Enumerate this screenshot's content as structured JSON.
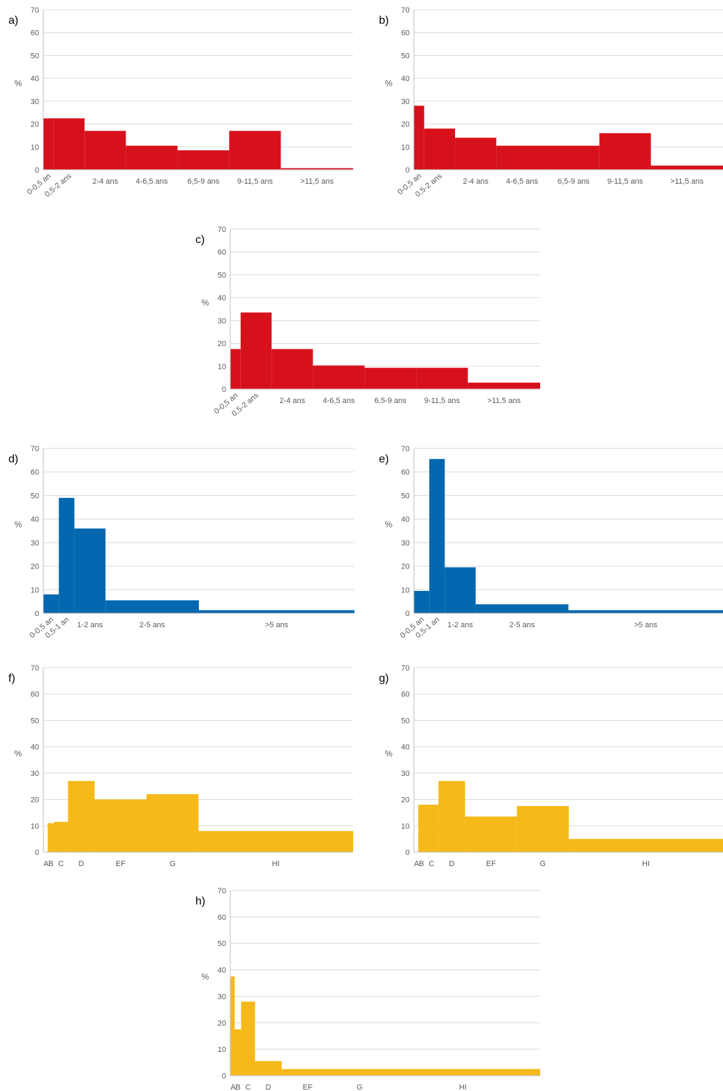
{
  "chart_data": [
    {
      "panel": "a)",
      "type": "bar",
      "ylabel": "%",
      "ylim": [
        0,
        70
      ],
      "yticks": [
        "0",
        "10",
        "20",
        "30",
        "40",
        "50",
        "60",
        "70"
      ],
      "color": "#d7111c",
      "bins": [
        {
          "label": "0-0,5 an",
          "start": 0,
          "end": 0.5,
          "value": 22.5,
          "rotated": true
        },
        {
          "label": "0,5-2 ans",
          "start": 0.5,
          "end": 2,
          "value": 22.5,
          "rotated": true
        },
        {
          "label": "2-4 ans",
          "start": 2,
          "end": 4,
          "value": 17
        },
        {
          "label": "4-6,5 ans",
          "start": 4,
          "end": 6.5,
          "value": 10.5
        },
        {
          "label": "6,5-9 ans",
          "start": 6.5,
          "end": 9,
          "value": 8.5
        },
        {
          "label": "9-11,5 ans",
          "start": 9,
          "end": 11.5,
          "value": 17
        },
        {
          "label": ">11,5 ans",
          "start": 11.5,
          "end": 15,
          "value": 0.7
        }
      ]
    },
    {
      "panel": "b)",
      "type": "bar",
      "ylabel": "%",
      "ylim": [
        0,
        70
      ],
      "yticks": [
        "0",
        "10",
        "20",
        "30",
        "40",
        "50",
        "60",
        "70"
      ],
      "color": "#d7111c",
      "bins": [
        {
          "label": "0-0,5 an",
          "start": 0,
          "end": 0.5,
          "value": 28,
          "rotated": true
        },
        {
          "label": "0,5-2 ans",
          "start": 0.5,
          "end": 2,
          "value": 18,
          "rotated": true
        },
        {
          "label": "2-4 ans",
          "start": 2,
          "end": 4,
          "value": 14
        },
        {
          "label": "4-6,5 ans",
          "start": 4,
          "end": 6.5,
          "value": 10.5
        },
        {
          "label": "6,5-9 ans",
          "start": 6.5,
          "end": 9,
          "value": 10.5
        },
        {
          "label": "9-11,5 ans",
          "start": 9,
          "end": 11.5,
          "value": 16
        },
        {
          "label": ">11,5 ans",
          "start": 11.5,
          "end": 15,
          "value": 1.8
        }
      ]
    },
    {
      "panel": "c)",
      "type": "bar",
      "ylabel": "%",
      "ylim": [
        0,
        70
      ],
      "yticks": [
        "0",
        "10",
        "20",
        "30",
        "40",
        "50",
        "60",
        "70"
      ],
      "color": "#d7111c",
      "bins": [
        {
          "label": "0-0,5 an",
          "start": 0,
          "end": 0.5,
          "value": 17.5,
          "rotated": true
        },
        {
          "label": "0,5-2 ans",
          "start": 0.5,
          "end": 2,
          "value": 33.5,
          "rotated": true
        },
        {
          "label": "2-4 ans",
          "start": 2,
          "end": 4,
          "value": 17.5
        },
        {
          "label": "4-6,5 ans",
          "start": 4,
          "end": 6.5,
          "value": 10.3
        },
        {
          "label": "6,5-9 ans",
          "start": 6.5,
          "end": 9,
          "value": 9.3
        },
        {
          "label": "9-11,5 ans",
          "start": 9,
          "end": 11.5,
          "value": 9.3
        },
        {
          "label": ">11,5 ans",
          "start": 11.5,
          "end": 15,
          "value": 2.8
        }
      ]
    },
    {
      "panel": "d)",
      "type": "bar",
      "ylabel": "%",
      "ylim": [
        0,
        70
      ],
      "yticks": [
        "0",
        "10",
        "20",
        "30",
        "40",
        "50",
        "60",
        "70"
      ],
      "color": "#0468b0",
      "bins": [
        {
          "label": "0-0,5 an",
          "start": 0,
          "end": 0.5,
          "value": 8,
          "rotated": true
        },
        {
          "label": "0,5-1 an",
          "start": 0.5,
          "end": 1,
          "value": 49,
          "rotated": true
        },
        {
          "label": "1-2 ans",
          "start": 1,
          "end": 2,
          "value": 36
        },
        {
          "label": "2-5 ans",
          "start": 2,
          "end": 5,
          "value": 5.5
        },
        {
          "label": ">5 ans",
          "start": 5,
          "end": 10,
          "value": 1.3
        }
      ]
    },
    {
      "panel": "e)",
      "type": "bar",
      "ylabel": "%",
      "ylim": [
        0,
        70
      ],
      "yticks": [
        "0",
        "10",
        "20",
        "30",
        "40",
        "50",
        "60",
        "70"
      ],
      "color": "#0468b0",
      "bins": [
        {
          "label": "0-0,5 an",
          "start": 0,
          "end": 0.5,
          "value": 9.5,
          "rotated": true
        },
        {
          "label": "0,5-1 an",
          "start": 0.5,
          "end": 1,
          "value": 65.5,
          "rotated": true
        },
        {
          "label": "1-2 ans",
          "start": 1,
          "end": 2,
          "value": 19.5
        },
        {
          "label": "2-5 ans",
          "start": 2,
          "end": 5,
          "value": 3.8
        },
        {
          "label": ">5 ans",
          "start": 5,
          "end": 10,
          "value": 1.3
        }
      ]
    },
    {
      "panel": "f)",
      "type": "bar",
      "ylabel": "%",
      "ylim": [
        0,
        70
      ],
      "yticks": [
        "0",
        "10",
        "20",
        "30",
        "40",
        "50",
        "60",
        "70"
      ],
      "color": "#f5b919",
      "bins": [
        {
          "label": "A",
          "start": 0,
          "end": 0.35,
          "value": 0
        },
        {
          "label": "B",
          "start": 0.35,
          "end": 0.85,
          "value": 11
        },
        {
          "label": "C",
          "start": 0.85,
          "end": 1.95,
          "value": 11.5
        },
        {
          "label": "D",
          "start": 1.95,
          "end": 4.05,
          "value": 27
        },
        {
          "label": "EF",
          "start": 4.05,
          "end": 8.15,
          "value": 20
        },
        {
          "label": "G",
          "start": 8.15,
          "end": 12.25,
          "value": 22
        },
        {
          "label": "HI",
          "start": 12.25,
          "end": 24.45,
          "value": 8
        }
      ]
    },
    {
      "panel": "g)",
      "type": "bar",
      "ylabel": "%",
      "ylim": [
        0,
        70
      ],
      "yticks": [
        "0",
        "10",
        "20",
        "30",
        "40",
        "50",
        "60",
        "70"
      ],
      "color": "#f5b919",
      "bins": [
        {
          "label": "A",
          "start": 0,
          "end": 0.35,
          "value": 0
        },
        {
          "label": "B",
          "start": 0.35,
          "end": 0.85,
          "value": 18
        },
        {
          "label": "C",
          "start": 0.85,
          "end": 1.95,
          "value": 18
        },
        {
          "label": "D",
          "start": 1.95,
          "end": 4.05,
          "value": 27
        },
        {
          "label": "EF",
          "start": 4.05,
          "end": 8.15,
          "value": 13.5
        },
        {
          "label": "G",
          "start": 8.15,
          "end": 12.25,
          "value": 17.5
        },
        {
          "label": "HI",
          "start": 12.25,
          "end": 24.45,
          "value": 5
        }
      ]
    },
    {
      "panel": "h)",
      "type": "bar",
      "ylabel": "%",
      "ylim": [
        0,
        70
      ],
      "yticks": [
        "0",
        "10",
        "20",
        "30",
        "40",
        "50",
        "60",
        "70"
      ],
      "color": "#f5b919",
      "bins": [
        {
          "label": "A",
          "start": 0,
          "end": 0.35,
          "value": 37.5
        },
        {
          "label": "B",
          "start": 0.35,
          "end": 0.85,
          "value": 17.5
        },
        {
          "label": "C",
          "start": 0.85,
          "end": 1.95,
          "value": 28
        },
        {
          "label": "D",
          "start": 1.95,
          "end": 4.05,
          "value": 5.5
        },
        {
          "label": "EF",
          "start": 4.05,
          "end": 8.15,
          "value": 2.5
        },
        {
          "label": "G",
          "start": 8.15,
          "end": 12.25,
          "value": 2.5
        },
        {
          "label": "HI",
          "start": 12.25,
          "end": 24.45,
          "value": 2.5
        }
      ]
    }
  ]
}
